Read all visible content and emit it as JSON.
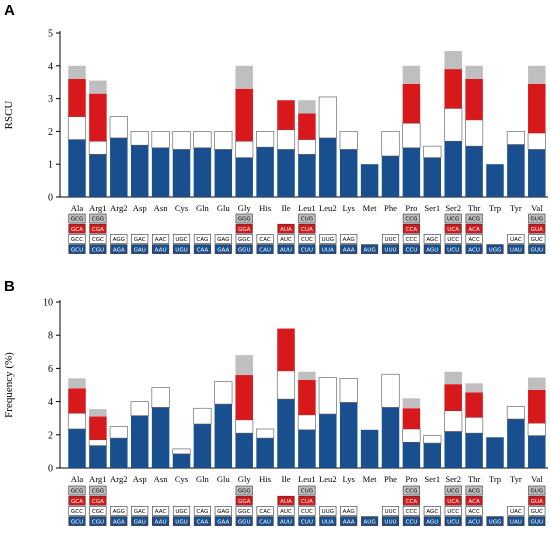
{
  "figure": {
    "colors": {
      "c1": "#1a4f8f",
      "c2": "#ffffff",
      "c3": "#d7191c",
      "c4": "#bfbfbf",
      "stroke": "#555555"
    }
  },
  "chart_data": [
    {
      "panel": "A",
      "type": "bar",
      "stacked": true,
      "ylabel": "RSCU",
      "ylim": [
        0,
        5
      ],
      "yticks": [
        0,
        1,
        2,
        3,
        4,
        5
      ],
      "categories": [
        "Ala",
        "Arg1",
        "Arg2",
        "Asp",
        "Asn",
        "Cys",
        "Gln",
        "Glu",
        "Gly",
        "His",
        "Ile",
        "Leu1",
        "Leu2",
        "Lys",
        "Met",
        "Phe",
        "Pro",
        "Ser1",
        "Ser2",
        "Thr",
        "Trp",
        "Tyr",
        "Val"
      ],
      "stacks": [
        [
          1.75,
          0.7,
          1.15,
          0.4
        ],
        [
          1.3,
          0.4,
          1.45,
          0.4
        ],
        [
          1.8,
          0.65
        ],
        [
          1.58,
          0.42
        ],
        [
          1.5,
          0.5
        ],
        [
          1.45,
          0.55
        ],
        [
          1.5,
          0.5
        ],
        [
          1.45,
          0.55
        ],
        [
          1.2,
          0.5,
          1.6,
          0.7
        ],
        [
          1.52,
          0.48
        ],
        [
          1.45,
          0.6,
          0.9
        ],
        [
          1.3,
          0.45,
          0.8,
          0.4
        ],
        [
          1.8,
          1.25
        ],
        [
          1.45,
          0.55
        ],
        [
          1.0
        ],
        [
          1.25,
          0.75
        ],
        [
          1.5,
          0.75,
          1.2,
          0.55
        ],
        [
          1.2,
          0.35
        ],
        [
          1.7,
          1.0,
          1.2,
          0.55
        ],
        [
          1.55,
          0.8,
          1.25,
          0.4
        ],
        [
          1.0
        ],
        [
          1.6,
          0.4
        ],
        [
          1.45,
          0.5,
          1.5,
          0.55
        ]
      ],
      "codons": [
        [
          "GCU",
          "GCC",
          "GCA",
          "GCG"
        ],
        [
          "CGU",
          "CGC",
          "CGA",
          "CGG"
        ],
        [
          "AGA",
          "AGG"
        ],
        [
          "GAU",
          "GAC"
        ],
        [
          "AAU",
          "AAC"
        ],
        [
          "UGU",
          "UGC"
        ],
        [
          "CAA",
          "CAG"
        ],
        [
          "GAA",
          "GAG"
        ],
        [
          "GGU",
          "GGC",
          "GGA",
          "GGG"
        ],
        [
          "CAU",
          "CAC"
        ],
        [
          "AUU",
          "AUC",
          "AUA"
        ],
        [
          "CUU",
          "CUC",
          "CUA",
          "CUG"
        ],
        [
          "UUA",
          "UUG"
        ],
        [
          "AAA",
          "AAG"
        ],
        [
          "AUG"
        ],
        [
          "UUU",
          "UUC"
        ],
        [
          "CCU",
          "CCC",
          "CCA",
          "CCG"
        ],
        [
          "AGU",
          "AGC"
        ],
        [
          "UCU",
          "UCC",
          "UCA",
          "UCG"
        ],
        [
          "ACU",
          "ACC",
          "ACA",
          "ACG"
        ],
        [
          "UGG"
        ],
        [
          "UAU",
          "UAC"
        ],
        [
          "GUU",
          "GUC",
          "GUA",
          "GUG"
        ]
      ]
    },
    {
      "panel": "B",
      "type": "bar",
      "stacked": true,
      "ylabel": "Frequency (%)",
      "ylim": [
        0,
        10
      ],
      "yticks": [
        0,
        2,
        4,
        6,
        8,
        10
      ],
      "categories": [
        "Ala",
        "Arg1",
        "Arg2",
        "Asp",
        "Asn",
        "Cys",
        "Gln",
        "Glu",
        "Gly",
        "His",
        "Ile",
        "Leu1",
        "Leu2",
        "Lys",
        "Met",
        "Phe",
        "Pro",
        "Ser1",
        "Ser2",
        "Thr",
        "Trp",
        "Tyr",
        "Val"
      ],
      "stacks": [
        [
          2.35,
          0.95,
          1.5,
          0.6
        ],
        [
          1.35,
          0.35,
          1.4,
          0.45
        ],
        [
          1.8,
          0.7
        ],
        [
          3.15,
          0.85
        ],
        [
          3.65,
          1.2
        ],
        [
          0.85,
          0.3
        ],
        [
          2.65,
          0.95
        ],
        [
          3.85,
          1.35
        ],
        [
          2.1,
          0.8,
          2.7,
          1.2
        ],
        [
          1.8,
          0.55
        ],
        [
          4.15,
          1.7,
          2.55
        ],
        [
          2.3,
          0.9,
          2.1,
          0.5
        ],
        [
          3.25,
          2.2
        ],
        [
          3.95,
          1.45
        ],
        [
          2.3
        ],
        [
          3.65,
          2.0
        ],
        [
          1.55,
          0.8,
          1.25,
          0.6
        ],
        [
          1.5,
          0.45
        ],
        [
          2.2,
          1.25,
          1.6,
          0.75
        ],
        [
          2.1,
          0.95,
          1.5,
          0.55
        ],
        [
          1.85
        ],
        [
          2.95,
          0.75
        ],
        [
          1.95,
          0.75,
          2.0,
          0.75
        ]
      ],
      "codons": [
        [
          "GCU",
          "GCC",
          "GCA",
          "GCG"
        ],
        [
          "CGU",
          "CGC",
          "CGA",
          "CGG"
        ],
        [
          "AGA",
          "AGG"
        ],
        [
          "GAU",
          "GAC"
        ],
        [
          "AAU",
          "AAC"
        ],
        [
          "UGU",
          "UGC"
        ],
        [
          "CAA",
          "CAG"
        ],
        [
          "GAA",
          "GAG"
        ],
        [
          "GGU",
          "GGC",
          "GGA",
          "GGG"
        ],
        [
          "CAU",
          "CAC"
        ],
        [
          "AUU",
          "AUC",
          "AUA"
        ],
        [
          "CUU",
          "CUC",
          "CUA",
          "CUG"
        ],
        [
          "UUA",
          "UUG"
        ],
        [
          "AAA",
          "AAG"
        ],
        [
          "AUG"
        ],
        [
          "UUU",
          "UUC"
        ],
        [
          "CCU",
          "CCC",
          "CCA",
          "CCG"
        ],
        [
          "AGU",
          "AGC"
        ],
        [
          "UCU",
          "UCC",
          "UCA",
          "UCG"
        ],
        [
          "ACU",
          "ACC",
          "ACA",
          "ACG"
        ],
        [
          "UGG"
        ],
        [
          "UAU",
          "UAC"
        ],
        [
          "GUU",
          "GUC",
          "GUA",
          "GUG"
        ]
      ]
    }
  ]
}
